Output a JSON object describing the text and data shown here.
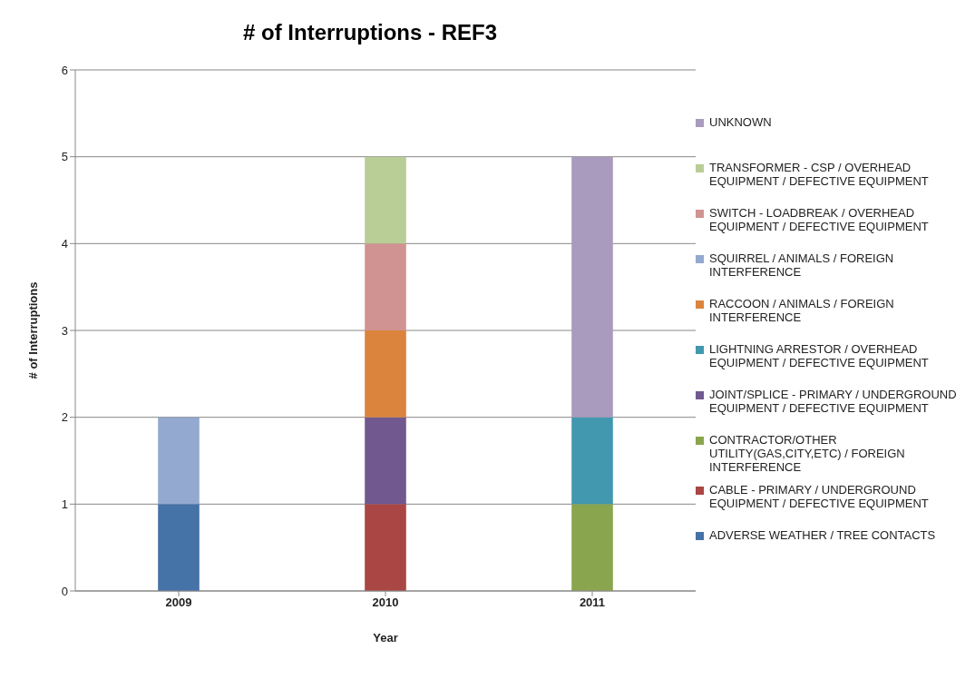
{
  "chart_data": {
    "type": "bar",
    "title": "# of Interruptions - REF3",
    "xlabel": "Year",
    "ylabel": "# of Interruptions",
    "categories": [
      "2009",
      "2010",
      "2011"
    ],
    "stacked": true,
    "ylim": [
      0,
      6
    ],
    "yticks": [
      0,
      1,
      2,
      3,
      4,
      5,
      6
    ],
    "grid": "y",
    "legend": "right",
    "series": [
      {
        "name": "ADVERSE  WEATHER / TREE CONTACTS",
        "color": "#4572a7",
        "values": [
          1,
          null,
          null
        ]
      },
      {
        "name": "CABLE - PRIMARY / UNDERGROUND EQUIPMENT / DEFECTIVE EQUIPMENT",
        "color": "#aa4643",
        "values": [
          null,
          1,
          null
        ]
      },
      {
        "name": "CONTRACTOR/OTHER UTILITY(GAS,CITY,ETC) / FOREIGN INTERFERENCE",
        "color": "#89a54e",
        "values": [
          null,
          null,
          1
        ]
      },
      {
        "name": "JOINT/SPLICE - PRIMARY / UNDERGROUND EQUIPMENT / DEFECTIVE EQUIPMENT",
        "color": "#71588f",
        "values": [
          null,
          1,
          null
        ]
      },
      {
        "name": "LIGHTNING ARRESTOR / OVERHEAD EQUIPMENT / DEFECTIVE EQUIPMENT",
        "color": "#4198af",
        "values": [
          null,
          null,
          1
        ]
      },
      {
        "name": "RACCOON / ANIMALS / FOREIGN INTERFERENCE",
        "color": "#db843d",
        "values": [
          null,
          1,
          null
        ]
      },
      {
        "name": "SQUIRREL / ANIMALS / FOREIGN INTERFERENCE",
        "color": "#93a9cf",
        "values": [
          1,
          null,
          null
        ]
      },
      {
        "name": "SWITCH - LOADBREAK / OVERHEAD EQUIPMENT / DEFECTIVE EQUIPMENT",
        "color": "#d19392",
        "values": [
          null,
          1,
          null
        ]
      },
      {
        "name": "TRANSFORMER - CSP / OVERHEAD EQUIPMENT / DEFECTIVE EQUIPMENT",
        "color": "#b9cd96",
        "values": [
          null,
          1,
          null
        ]
      },
      {
        "name": "UNKNOWN",
        "color": "#a99bbd",
        "values": [
          null,
          null,
          3
        ]
      }
    ]
  }
}
